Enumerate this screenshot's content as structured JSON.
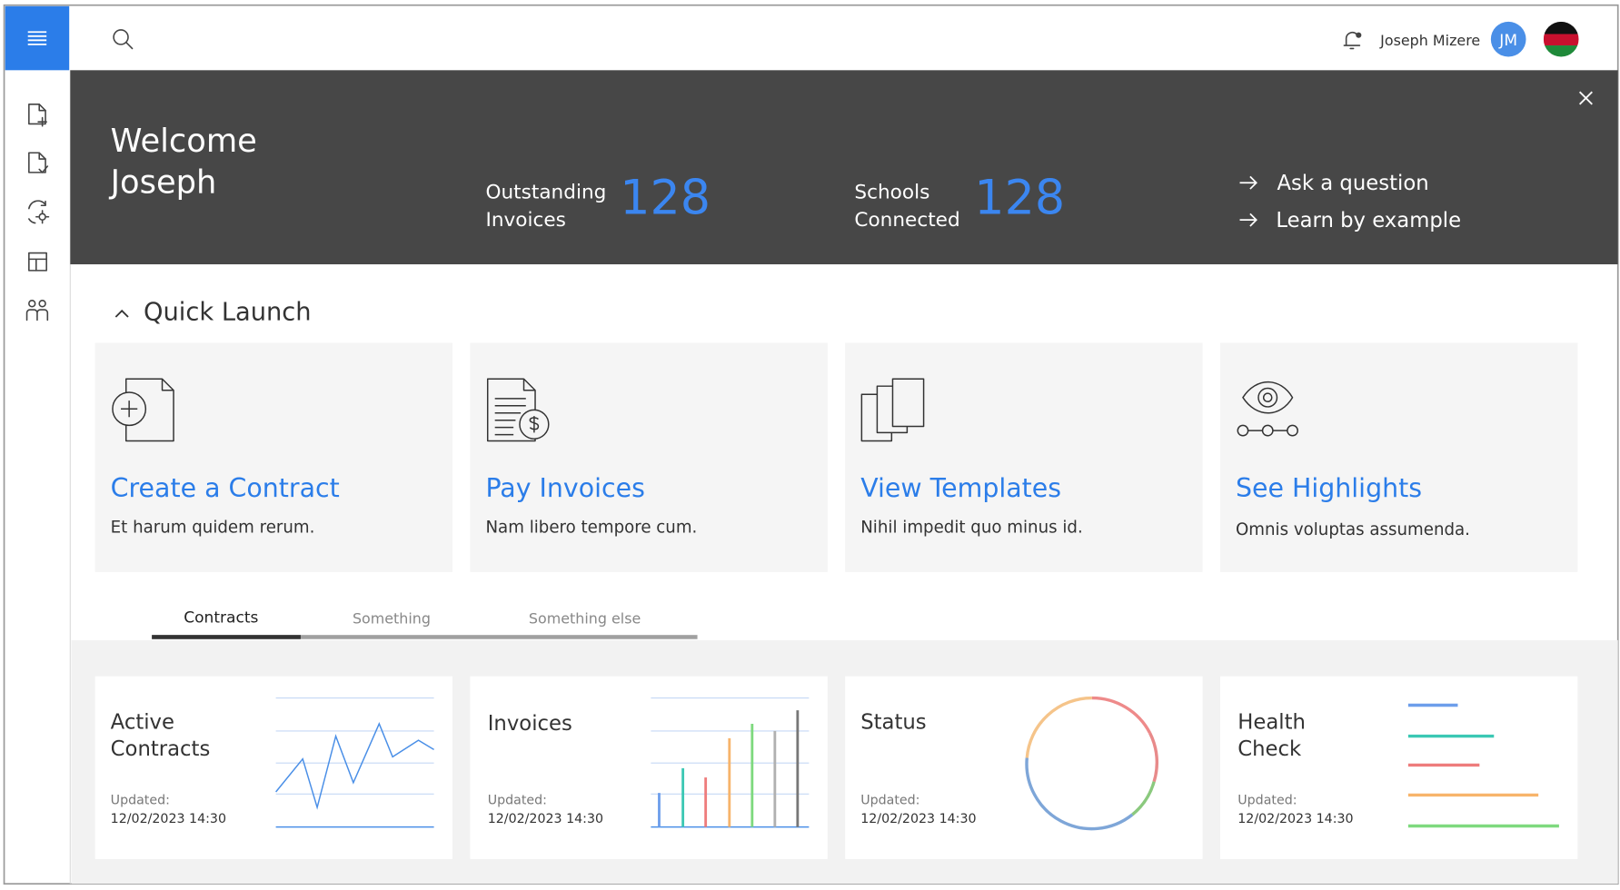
{
  "header": {
    "user_name": "Joseph Mizere",
    "avatar_initials": "JM"
  },
  "banner": {
    "welcome": "Welcome",
    "name": "Joseph",
    "stats": [
      {
        "label_lines": [
          "Outstanding",
          "Invoices"
        ],
        "value": 128
      },
      {
        "label_lines": [
          "Schools",
          "Connected"
        ],
        "value": 128
      }
    ],
    "links": [
      "Ask a question",
      "Learn by example"
    ]
  },
  "quick_launch": {
    "title": "Quick Launch",
    "cards": [
      {
        "title": "Create a Contract",
        "description": "Et harum quidem rerum."
      },
      {
        "title": "Pay Invoices",
        "description": "Nam libero tempore cum."
      },
      {
        "title": "View Templates",
        "description": "Nihil impedit quo minus id."
      },
      {
        "title": "See Highlights",
        "description": "Omnis voluptas assumenda."
      }
    ]
  },
  "tabs": [
    "Contracts",
    "Something",
    "Something else"
  ],
  "widgets": [
    {
      "title_lines": [
        "Active",
        "Contracts"
      ],
      "updated_label": "Updated:",
      "updated": "12/02/2023 14:30"
    },
    {
      "title_lines": [
        "Invoices"
      ],
      "updated_label": "Updated:",
      "updated": "12/02/2023 14:30"
    },
    {
      "title_lines": [
        "Status"
      ],
      "updated_label": "Updated:",
      "updated": "12/02/2023 14:30"
    },
    {
      "title_lines": [
        "Health",
        "Check"
      ],
      "updated_label": "Updated:",
      "updated": "12/02/2023 14:30"
    }
  ]
}
